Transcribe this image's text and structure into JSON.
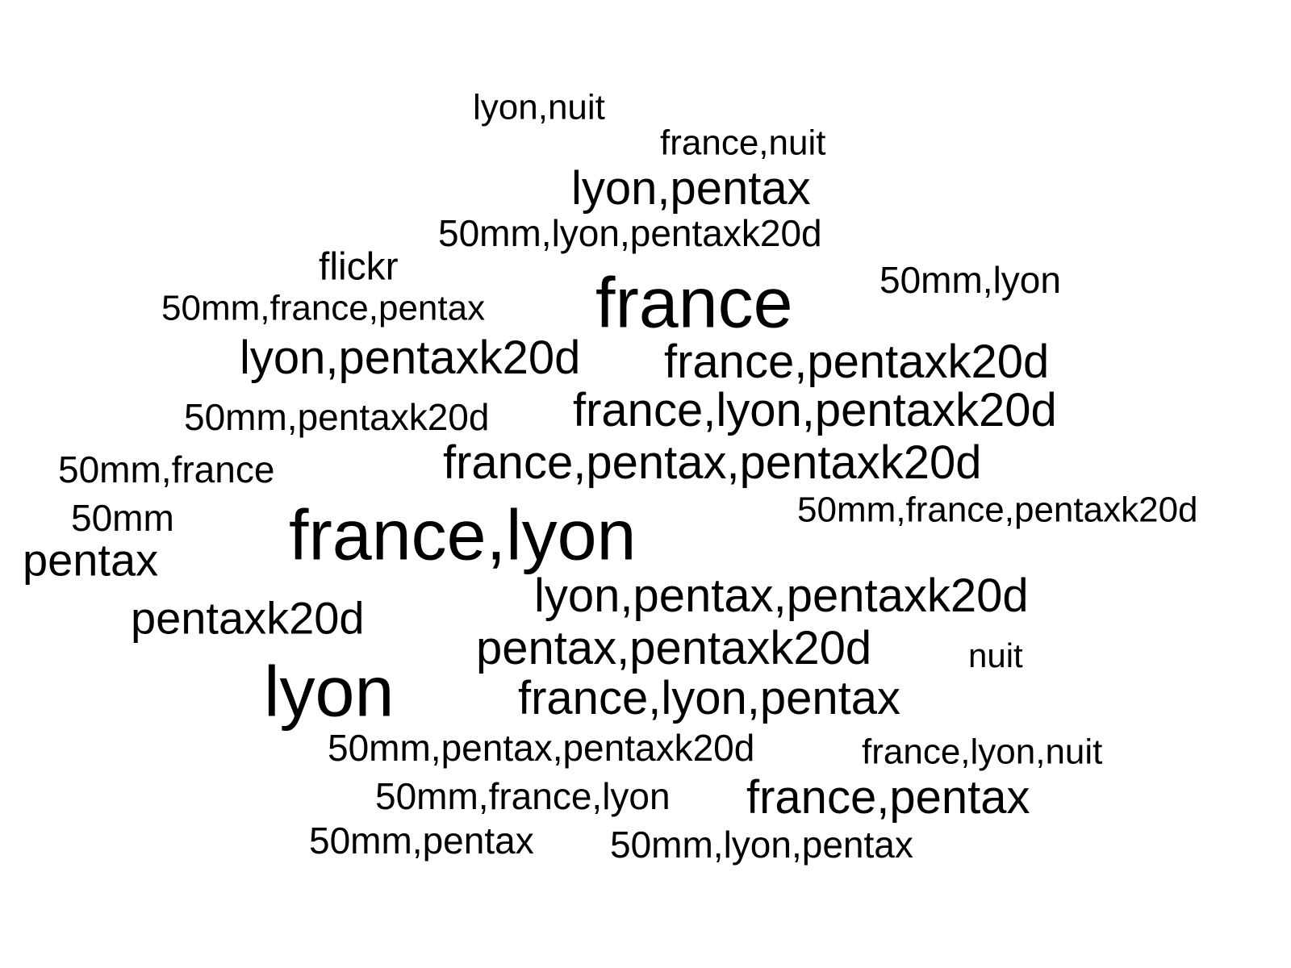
{
  "word_cloud": {
    "words": [
      {
        "text": "lyon,nuit",
        "weight": 1
      },
      {
        "text": "france,nuit",
        "weight": 1
      },
      {
        "text": "lyon,pentax",
        "weight": 3
      },
      {
        "text": "50mm,lyon,pentaxk20d",
        "weight": 2
      },
      {
        "text": "flickr",
        "weight": 2
      },
      {
        "text": "france",
        "weight": 6
      },
      {
        "text": "50mm,lyon",
        "weight": 2
      },
      {
        "text": "50mm,france,pentax",
        "weight": 2
      },
      {
        "text": "lyon,pentaxk20d",
        "weight": 3
      },
      {
        "text": "france,pentaxk20d",
        "weight": 3
      },
      {
        "text": "50mm,pentaxk20d",
        "weight": 2
      },
      {
        "text": "france,lyon,pentaxk20d",
        "weight": 3
      },
      {
        "text": "50mm,france",
        "weight": 2
      },
      {
        "text": "france,pentax,pentaxk20d",
        "weight": 3
      },
      {
        "text": "50mm",
        "weight": 2
      },
      {
        "text": "france,lyon",
        "weight": 6
      },
      {
        "text": "50mm,france,pentaxk20d",
        "weight": 2
      },
      {
        "text": "pentax",
        "weight": 3
      },
      {
        "text": "lyon,pentax,pentaxk20d",
        "weight": 3
      },
      {
        "text": "pentaxk20d",
        "weight": 3
      },
      {
        "text": "pentax,pentaxk20d",
        "weight": 3
      },
      {
        "text": "nuit",
        "weight": 1
      },
      {
        "text": "lyon",
        "weight": 6
      },
      {
        "text": "france,lyon,pentax",
        "weight": 3
      },
      {
        "text": "50mm,pentax,pentaxk20d",
        "weight": 2
      },
      {
        "text": "france,lyon,nuit",
        "weight": 1
      },
      {
        "text": "50mm,france,lyon",
        "weight": 2
      },
      {
        "text": "france,pentax",
        "weight": 3
      },
      {
        "text": "50mm,pentax",
        "weight": 2
      },
      {
        "text": "50mm,lyon,pentax",
        "weight": 2
      }
    ]
  }
}
